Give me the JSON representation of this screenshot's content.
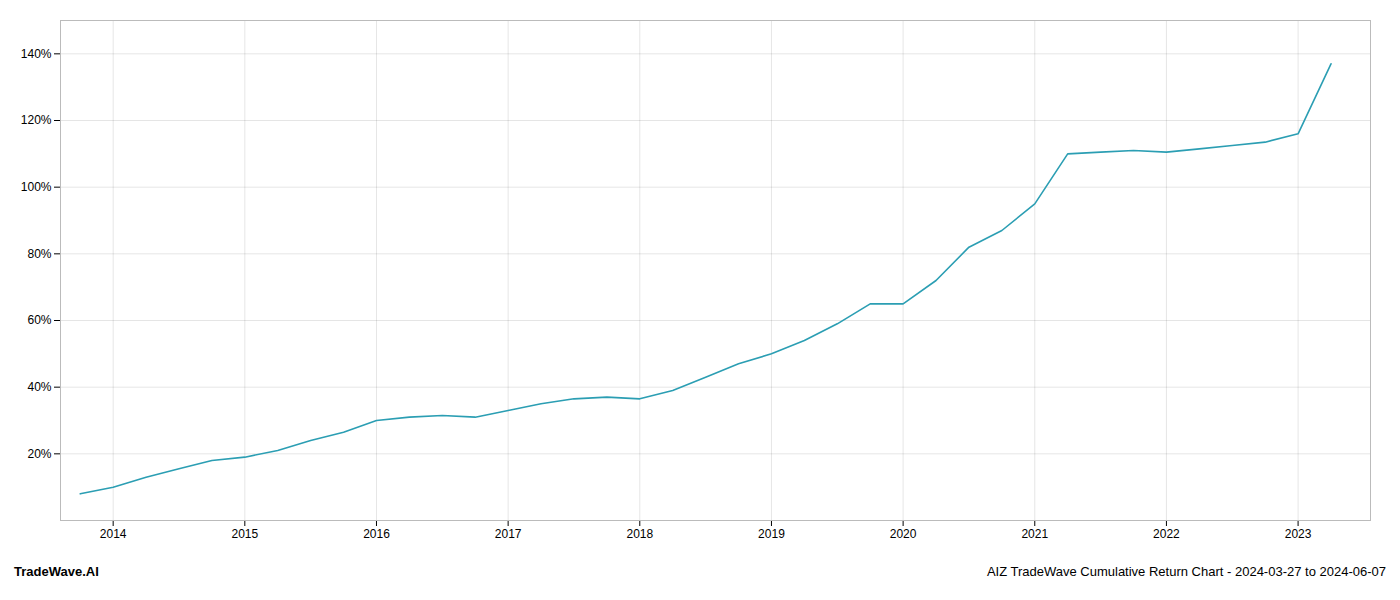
{
  "chart_data": {
    "type": "line",
    "title": "AIZ TradeWave Cumulative Return Chart - 2024-03-27 to 2024-06-07",
    "annotations": [
      "TradeWave.AI"
    ],
    "x": [
      2013.75,
      2014.0,
      2014.25,
      2014.5,
      2014.75,
      2015.0,
      2015.25,
      2015.5,
      2015.75,
      2016.0,
      2016.25,
      2016.5,
      2016.75,
      2017.0,
      2017.25,
      2017.5,
      2017.75,
      2018.0,
      2018.25,
      2018.5,
      2018.75,
      2019.0,
      2019.25,
      2019.5,
      2019.75,
      2020.0,
      2020.25,
      2020.5,
      2020.75,
      2021.0,
      2021.25,
      2021.5,
      2021.75,
      2022.0,
      2022.25,
      2022.5,
      2022.75,
      2023.0,
      2023.25
    ],
    "values": [
      8.0,
      10.0,
      13.0,
      15.5,
      18.0,
      19.0,
      21.0,
      24.0,
      26.5,
      30.0,
      31.0,
      31.5,
      31.0,
      33.0,
      35.0,
      36.5,
      37.0,
      36.5,
      39.0,
      43.0,
      47.0,
      50.0,
      54.0,
      59.0,
      65.0,
      65.0,
      72.0,
      82.0,
      87.0,
      95.0,
      110.0,
      110.5,
      111.0,
      110.5,
      111.5,
      112.5,
      113.5,
      116.0,
      137.0
    ],
    "color": "#2b9eb3",
    "xlim": [
      2013.6,
      2023.55
    ],
    "xticks": [
      2014,
      2015,
      2016,
      2017,
      2018,
      2019,
      2020,
      2021,
      2022,
      2023
    ],
    "ylim": [
      0,
      150
    ],
    "yticks": [
      {
        "value": 20,
        "label": "20%"
      },
      {
        "value": 40,
        "label": "40%"
      },
      {
        "value": 60,
        "label": "60%"
      },
      {
        "value": 80,
        "label": "80%"
      },
      {
        "value": 100,
        "label": "100%"
      },
      {
        "value": 120,
        "label": "120%"
      },
      {
        "value": 140,
        "label": "140%"
      }
    ],
    "grid": true
  }
}
